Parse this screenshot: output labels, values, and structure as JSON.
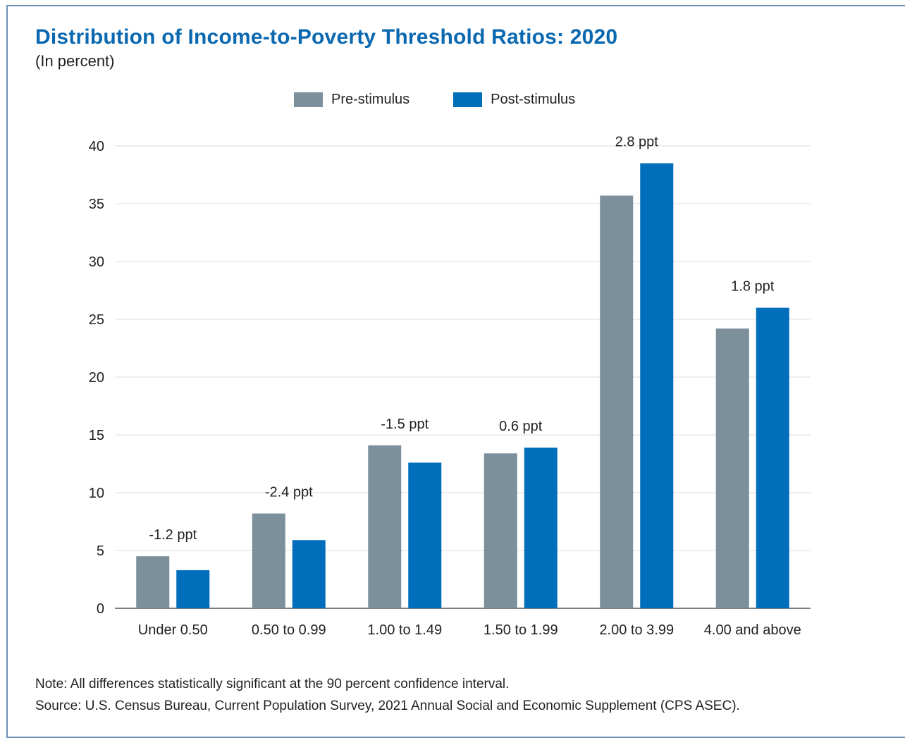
{
  "chart_title": "Distribution of Income-to-Poverty Threshold Ratios: 2020",
  "chart_subtitle": "(In percent)",
  "note": "Note: All differences statistically significant at the 90 percent confidence interval.",
  "source": "Source: U.S. Census Bureau, Current Population Survey, 2021 Annual Social and Economic Supplement (CPS ASEC).",
  "colors": {
    "title": "#0a68b1",
    "pre_stimulus": "#7b909b",
    "post_stimulus": "#006ebb",
    "gridline": "#dcdcdc",
    "axis": "#555555"
  },
  "chart_data": {
    "type": "bar",
    "title": "Distribution of Income-to-Poverty Threshold Ratios: 2020",
    "subtitle": "(In percent)",
    "categories": [
      "Under 0.50",
      "0.50 to 0.99",
      "1.00 to 1.49",
      "1.50 to 1.99",
      "2.00 to 3.99",
      "4.00 and above"
    ],
    "series": [
      {
        "name": "Pre-stimulus",
        "values": [
          4.5,
          8.2,
          14.1,
          13.4,
          35.7,
          24.2
        ]
      },
      {
        "name": "Post-stimulus",
        "values": [
          3.3,
          5.9,
          12.6,
          13.9,
          38.5,
          26.0
        ]
      }
    ],
    "annotations": [
      "-1.2 ppt",
      "-2.4 ppt",
      "-1.5 ppt",
      "0.6 ppt",
      "2.8 ppt",
      "1.8 ppt"
    ],
    "ylim": [
      0,
      40
    ],
    "yticks": [
      0,
      5,
      10,
      15,
      20,
      25,
      30,
      35,
      40
    ],
    "xlabel": "",
    "ylabel": "",
    "grid": true,
    "legend": "top-center"
  }
}
